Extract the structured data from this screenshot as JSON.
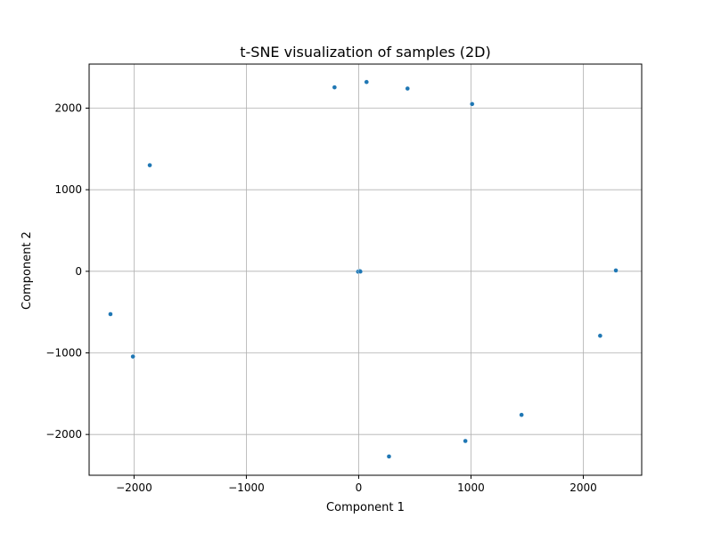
{
  "chart_data": {
    "type": "scatter",
    "title": "t-SNE visualization of samples (2D)",
    "xlabel": "Component 1",
    "ylabel": "Component 2",
    "xlim": [
      -2400,
      2520
    ],
    "ylim": [
      -2500,
      2540
    ],
    "xticks": [
      -2000,
      -1000,
      0,
      1000,
      2000
    ],
    "yticks": [
      -2000,
      -1000,
      0,
      1000,
      2000
    ],
    "xtick_labels": [
      "−2000",
      "−1000",
      "0",
      "1000",
      "2000"
    ],
    "ytick_labels": [
      "−2000",
      "−1000",
      "0",
      "1000",
      "2000"
    ],
    "grid": true,
    "legend": "none",
    "point_color": "#1f77b4",
    "points": [
      {
        "x": -2210,
        "y": -525
      },
      {
        "x": -2010,
        "y": -1045
      },
      {
        "x": -1860,
        "y": 1300
      },
      {
        "x": -215,
        "y": 2255
      },
      {
        "x": 70,
        "y": 2320
      },
      {
        "x": 435,
        "y": 2240
      },
      {
        "x": 1010,
        "y": 2050
      },
      {
        "x": 2290,
        "y": 10
      },
      {
        "x": 2150,
        "y": -790
      },
      {
        "x": 1450,
        "y": -1760
      },
      {
        "x": 950,
        "y": -2080
      },
      {
        "x": 270,
        "y": -2270
      },
      {
        "x": 0,
        "y": 0
      },
      {
        "x": 10,
        "y": 5
      },
      {
        "x": -5,
        "y": -5
      },
      {
        "x": 15,
        "y": -3
      }
    ]
  }
}
